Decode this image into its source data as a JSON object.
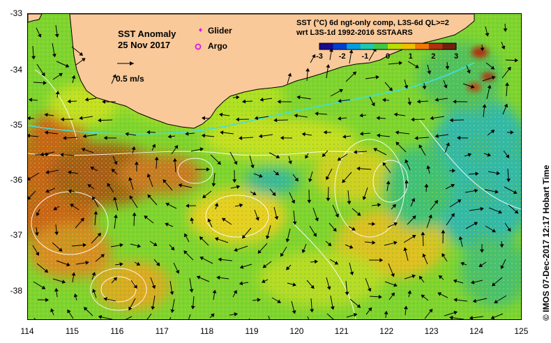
{
  "map": {
    "title": "SST Anomaly",
    "date": "25 Nov 2017",
    "scale_label": "0.5 m/s",
    "legend": {
      "glider_label": "Glider",
      "argo_label": "Argo",
      "glider_color": "#e020e0",
      "argo_color": "#e020e0"
    },
    "header_line1": "SST (°C) 6d ngt-only comp, L3S-6d QL>=2",
    "header_line2": "wrt L3S-1d 1992-2016 SSTAARS",
    "colorbar": {
      "ticks": [
        "-3",
        "-2",
        "-1",
        "0",
        "1",
        "2",
        "3"
      ],
      "colors": [
        "#1a0a8c",
        "#0040d0",
        "#00a0e0",
        "#20c8b0",
        "#40c840",
        "#b8e000",
        "#f0c000",
        "#f07800",
        "#b03010",
        "#702010"
      ]
    },
    "lat_labels": [
      "-33",
      "-34",
      "-35",
      "-36",
      "-37",
      "-38"
    ],
    "lon_labels": [
      "114",
      "115",
      "116",
      "117",
      "118",
      "119",
      "120",
      "121",
      "122",
      "123",
      "124",
      "125"
    ],
    "extent": {
      "lon": [
        114,
        125
      ],
      "lat": [
        -38.5,
        -33
      ]
    },
    "credit": "©  IMOS 07-Dec-2017 12:17 Hobart Time",
    "colors": {
      "land": "#f9c99a",
      "ocean_base": "#7ed430",
      "contour": "#ffffff",
      "track": "#40e0e0"
    }
  }
}
